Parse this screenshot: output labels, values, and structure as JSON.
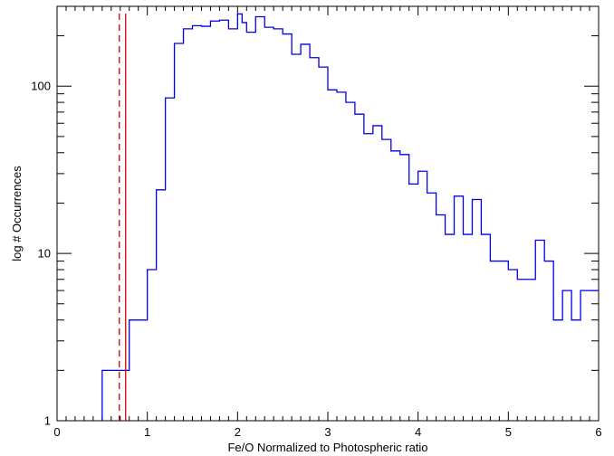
{
  "chart_data": {
    "type": "histogram-step",
    "xlabel": "Fe/O Normalized to Photospheric ratio",
    "ylabel": "log # Occurrences",
    "xlim": [
      0,
      6
    ],
    "ylim": [
      1,
      300
    ],
    "yscale": "log",
    "x_ticks": [
      0,
      1,
      2,
      3,
      4,
      5,
      6
    ],
    "y_ticks": [
      1,
      10,
      100
    ],
    "bin_width": 0.1,
    "bin_starts": [
      0.5,
      0.6,
      0.7,
      0.8,
      0.9,
      1.0,
      1.1,
      1.2,
      1.3,
      1.4,
      1.5,
      1.6,
      1.7,
      1.8,
      1.9,
      2.0,
      2.05,
      2.1,
      2.2,
      2.3,
      2.4,
      2.5,
      2.6,
      2.7,
      2.8,
      2.9,
      3.0,
      3.1,
      3.2,
      3.3,
      3.4,
      3.5,
      3.6,
      3.7,
      3.8,
      3.9,
      4.0,
      4.1,
      4.2,
      4.3,
      4.4,
      4.5,
      4.6,
      4.7,
      4.8,
      4.9,
      5.0,
      5.1,
      5.2,
      5.3,
      5.4,
      5.5,
      5.6,
      5.7,
      5.8,
      5.9
    ],
    "bin_ends": [
      0.6,
      0.7,
      0.8,
      0.9,
      1.0,
      1.1,
      1.2,
      1.3,
      1.4,
      1.5,
      1.6,
      1.7,
      1.8,
      1.9,
      2.0,
      2.05,
      2.1,
      2.2,
      2.3,
      2.4,
      2.5,
      2.6,
      2.7,
      2.8,
      2.9,
      3.0,
      3.1,
      3.2,
      3.3,
      3.4,
      3.5,
      3.6,
      3.7,
      3.8,
      3.9,
      4.0,
      4.1,
      4.2,
      4.3,
      4.4,
      4.5,
      4.6,
      4.7,
      4.8,
      4.9,
      5.0,
      5.1,
      5.2,
      5.3,
      5.4,
      5.5,
      5.6,
      5.7,
      5.8,
      5.9,
      6.0
    ],
    "counts": [
      2,
      2,
      2,
      4,
      4,
      8,
      24,
      85,
      180,
      220,
      230,
      228,
      245,
      248,
      220,
      270,
      240,
      210,
      260,
      225,
      220,
      205,
      155,
      178,
      148,
      130,
      95,
      92,
      80,
      68,
      52,
      58,
      48,
      41,
      39,
      26,
      31,
      23,
      17,
      13,
      22,
      13,
      21,
      13,
      9,
      9,
      8,
      7,
      7,
      12,
      9,
      4,
      6,
      4,
      6,
      6
    ],
    "vlines": [
      {
        "x": 0.69,
        "style": "dashed",
        "color": "#d00000"
      },
      {
        "x": 0.76,
        "style": "solid",
        "color": "#d00000"
      }
    ],
    "series_color": "#0000ee",
    "grid": false,
    "legend": "none"
  }
}
